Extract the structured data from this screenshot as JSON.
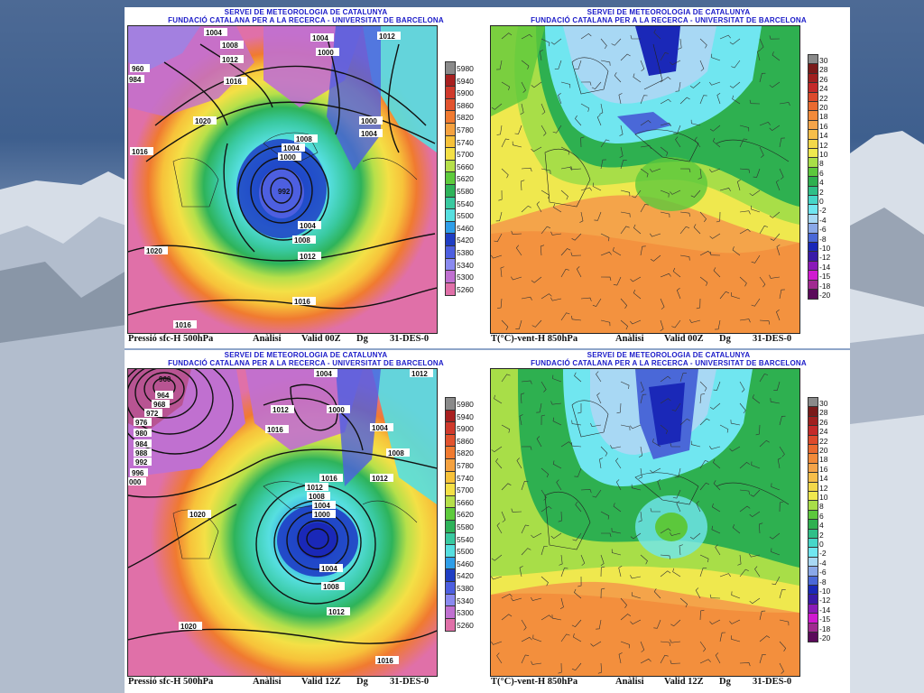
{
  "header": {
    "line1": "SERVEI DE METEOROLOGIA DE CATALUNYA",
    "line2": "FUNDACIÓ CATALANA PER A LA RECERCA - UNIVERSITAT DE BARCELONA"
  },
  "panels": {
    "tl": {
      "footer": {
        "field": "Pressió sfc-H 500hPa",
        "type": "Anàlisi",
        "valid": "Valid 00Z",
        "dg": "Dg",
        "date": "31-DES-0"
      },
      "isobars": [
        "1004",
        "1008",
        "1012",
        "960",
        "984",
        "1016",
        "1020",
        "1004",
        "1000",
        "1012",
        "1000",
        "1004",
        "1008",
        "1004",
        "1000",
        "992",
        "1004",
        "1008",
        "1012",
        "1016",
        "1020",
        "1016"
      ]
    },
    "tr": {
      "footer": {
        "field": "T(°C)-vent-H 850hPa",
        "type": "Anàlisi",
        "valid": "Valid 00Z",
        "dg": "Dg",
        "date": "31-DES-0"
      }
    },
    "bl": {
      "footer": {
        "field": "Pressió sfc-H 500hPa",
        "type": "Anàlisi",
        "valid": "Valid 12Z",
        "dg": "Dg",
        "date": "31-DES-0"
      },
      "isobars": [
        "960",
        "964",
        "968",
        "972",
        "976",
        "980",
        "984",
        "988",
        "992",
        "996",
        "1000",
        "1004",
        "1012",
        "1016",
        "1016",
        "1000",
        "1004",
        "1008",
        "1012",
        "1016",
        "1012",
        "1008",
        "1004",
        "1000",
        "1020",
        "1004",
        "1008",
        "1012",
        "1020",
        "1016"
      ]
    },
    "br": {
      "footer": {
        "field": "T(°C)-vent-H 850hPa",
        "type": "Anàlisi",
        "valid": "Valid 12Z",
        "dg": "Dg",
        "date": "31-DES-0"
      }
    }
  },
  "scales": {
    "geopotential": {
      "labels": [
        "5980",
        "5940",
        "5900",
        "5860",
        "5820",
        "5780",
        "5740",
        "5700",
        "5660",
        "5620",
        "5580",
        "5540",
        "5500",
        "5460",
        "5420",
        "5380",
        "5340",
        "5300",
        "5260"
      ],
      "colors": [
        "#8a8a8a",
        "#a82020",
        "#d03a2c",
        "#e2532e",
        "#f07a30",
        "#f5a240",
        "#f7c23a",
        "#f4e046",
        "#b6e04a",
        "#5ecb3c",
        "#2eb35a",
        "#39c9a0",
        "#56dfe0",
        "#2f9ee8",
        "#1f3ec4",
        "#4d5fe0",
        "#8a8af0",
        "#c070d0",
        "#e070a8"
      ]
    },
    "temperature": {
      "labels": [
        "30",
        "28",
        "26",
        "24",
        "22",
        "20",
        "18",
        "16",
        "14",
        "12",
        "10",
        "8",
        "6",
        "4",
        "2",
        "0",
        "-2",
        "-4",
        "-6",
        "-8",
        "-10",
        "-12",
        "-14",
        "-15",
        "-18",
        "-20"
      ],
      "colors": [
        "#8a8a8a",
        "#7a1a1a",
        "#a02020",
        "#c42a2a",
        "#dd4a2c",
        "#ea6a30",
        "#f28a3a",
        "#f4a44a",
        "#f6be4a",
        "#f3d84a",
        "#efe84e",
        "#a8de48",
        "#5cc83c",
        "#2eb050",
        "#2fbf88",
        "#46d6c8",
        "#70e6f0",
        "#a8d8f4",
        "#8aa8e8",
        "#4a68d8",
        "#1a28b8",
        "#3a1aa8",
        "#8a1ab8",
        "#d01ad0",
        "#a02a90",
        "#5a0a5a"
      ]
    }
  }
}
